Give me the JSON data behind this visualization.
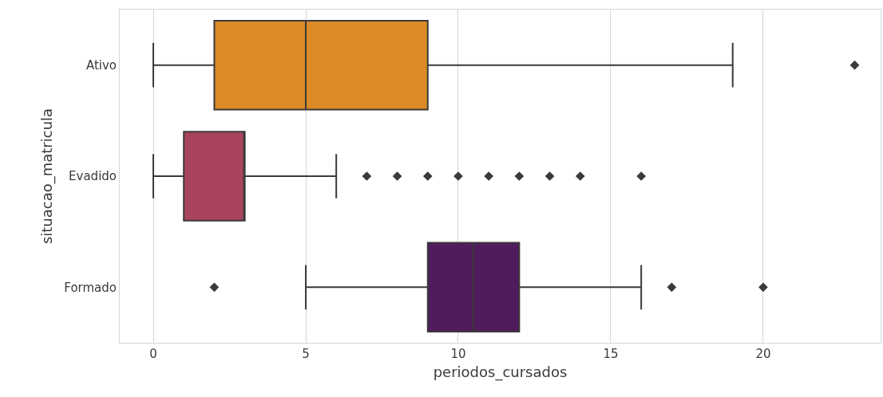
{
  "chart_data": {
    "type": "box",
    "orientation": "horizontal",
    "categories": [
      "Ativo",
      "Evadido",
      "Formado"
    ],
    "series": [
      {
        "color": "#dc8a27",
        "boxes": [
          {
            "low": 0,
            "q1": 2,
            "median": 5,
            "q3": 9,
            "high": 19,
            "outliers": [
              23
            ]
          },
          null,
          null
        ]
      },
      {
        "color": "#a8445c",
        "boxes": [
          null,
          {
            "low": 0,
            "q1": 1,
            "median": 3,
            "q3": 3,
            "high": 6,
            "outliers": [
              7,
              8,
              9,
              10,
              11,
              12,
              13,
              14,
              16
            ]
          },
          null
        ]
      },
      {
        "color": "#521b5e",
        "boxes": [
          null,
          null,
          {
            "low": 5,
            "q1": 9,
            "median": 10.5,
            "q3": 12,
            "high": 16,
            "outliers": [
              2,
              17,
              20
            ]
          }
        ]
      }
    ],
    "xlabel": "periodos_cursados",
    "ylabel": "situacao_matricula",
    "xlim": [
      -1.1,
      23.85
    ],
    "xticks": [
      0,
      5,
      10,
      15,
      20
    ],
    "grid": "x"
  }
}
